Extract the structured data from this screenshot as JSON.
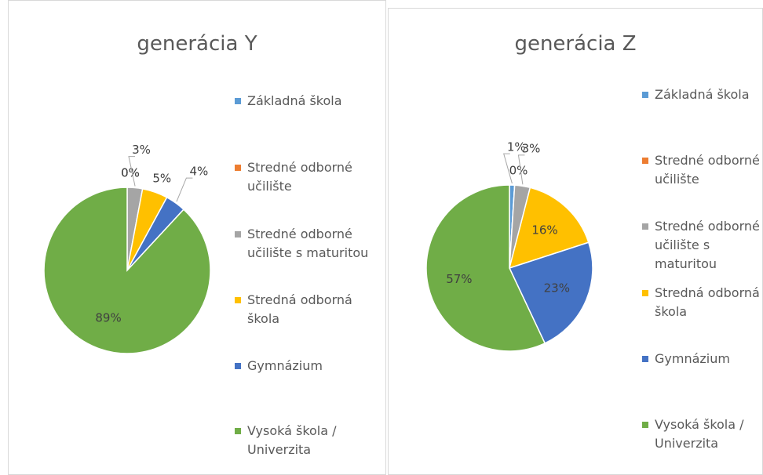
{
  "chart_data": [
    {
      "type": "pie",
      "title": "generácia Y",
      "categories": [
        "Základná škola",
        "Stredné odborné učilište",
        "Stredné odborné učilište s maturitou",
        "Stredná odborná škola",
        "Gymnázium",
        "Vysoká škola / Univerzita"
      ],
      "values": [
        0,
        0,
        3,
        5,
        4,
        89
      ],
      "value_labels": [
        "0%",
        "0%",
        "3%",
        "5%",
        "4%",
        "89%"
      ],
      "colors": [
        "#5b9bd5",
        "#ed7d31",
        "#a5a5a5",
        "#ffc000",
        "#4472c4",
        "#70ad47"
      ],
      "legend": "right"
    },
    {
      "type": "pie",
      "title": "generácia Z",
      "categories": [
        "Základná škola",
        "Stredné odborné učilište",
        "Stredné odborné učilište s maturitou",
        "Stredná odborná škola",
        "Gymnázium",
        "Vysoká škola / Univerzita"
      ],
      "values": [
        1,
        0,
        3,
        16,
        23,
        57
      ],
      "value_labels": [
        "1%",
        "0%",
        "3%",
        "16%",
        "23%",
        "57%"
      ],
      "colors": [
        "#5b9bd5",
        "#ed7d31",
        "#a5a5a5",
        "#ffc000",
        "#4472c4",
        "#70ad47"
      ],
      "legend": "right"
    }
  ]
}
